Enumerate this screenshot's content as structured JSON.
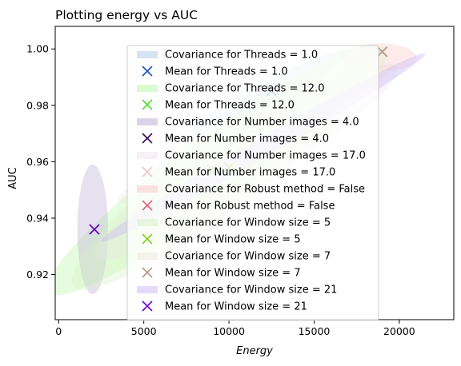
{
  "chart_data": {
    "type": "scatter",
    "title": "Plotting energy vs AUC",
    "xlabel": "Energy",
    "ylabel": "AUC",
    "xlim": [
      -200,
      23200
    ],
    "ylim": [
      0.904,
      1.008
    ],
    "xticks": [
      0,
      5000,
      10000,
      15000,
      20000
    ],
    "xtick_labels": [
      "0",
      "5000",
      "10000",
      "15000",
      "20000"
    ],
    "yticks": [
      0.92,
      0.94,
      0.96,
      0.98,
      1.0
    ],
    "ytick_labels": [
      "0.92",
      "0.94",
      "0.96",
      "0.98",
      "1.00"
    ],
    "grid": false,
    "legend_position": "upper center",
    "series": [
      {
        "name": "Covariance for Threads = 1.0",
        "kind": "covariance",
        "color": "#aec7e8",
        "center": [
          12500,
          0.985
        ],
        "rx": 5200,
        "ry": 0.004,
        "angle_data_per_x": 3.1e-06,
        "alpha": 0.35
      },
      {
        "name": "Mean for Threads = 1.0",
        "kind": "mean",
        "color": "#1f4fbf",
        "x": 12500,
        "y": 0.985
      },
      {
        "name": "Covariance for Threads = 12.0",
        "kind": "covariance",
        "color": "#b6f5a2",
        "center": [
          9000,
          0.957
        ],
        "rx": 12000,
        "ry": 0.012,
        "angle_data_per_x": 4.5e-06,
        "alpha": 0.35
      },
      {
        "name": "Mean for Threads = 12.0",
        "kind": "mean",
        "color": "#4de02b",
        "x": 9000,
        "y": 0.957
      },
      {
        "name": "Covariance for Number images = 4.0",
        "kind": "covariance",
        "color": "#b7a8d0",
        "center": [
          2000,
          0.936
        ],
        "rx": 900,
        "ry": 0.023,
        "angle_data_per_x": 0.0,
        "alpha": 0.35
      },
      {
        "name": "Mean for Number images = 4.0",
        "kind": "mean",
        "color": "#3b0a57",
        "x": 2100,
        "y": 0.936
      },
      {
        "name": "Covariance for Number images = 17.0",
        "kind": "covariance",
        "color": "#f0e2ea",
        "center": [
          11000,
          0.96
        ],
        "rx": 10500,
        "ry": 0.01,
        "angle_data_per_x": 3.8e-06,
        "alpha": 0.35
      },
      {
        "name": "Mean for Number images = 17.0",
        "kind": "mean",
        "color": "#e8c7cc",
        "x": 19000,
        "y": 0.999
      },
      {
        "name": "Covariance for Robust method = False",
        "kind": "covariance",
        "color": "#f8c5c8",
        "center": [
          18800,
          0.997
        ],
        "rx": 2200,
        "ry": 0.005,
        "angle_data_per_x": 0.0,
        "alpha": 0.35
      },
      {
        "name": "Mean for Robust method = False",
        "kind": "mean",
        "color": "#e06070",
        "x": 19000,
        "y": 0.999
      },
      {
        "name": "Covariance for Window size = 5",
        "kind": "covariance",
        "color": "#d8f0c2",
        "center": [
          10000,
          0.958
        ],
        "rx": 11500,
        "ry": 0.013,
        "angle_data_per_x": 4.6e-06,
        "alpha": 0.35
      },
      {
        "name": "Mean for Window size = 5",
        "kind": "mean",
        "color": "#7fd026",
        "x": 10000,
        "y": 0.958
      },
      {
        "name": "Covariance for Window size = 7",
        "kind": "covariance",
        "color": "#efe6de",
        "center": [
          11500,
          0.97
        ],
        "rx": 9000,
        "ry": 0.006,
        "angle_data_per_x": 3e-06,
        "alpha": 0.35
      },
      {
        "name": "Mean for Window size = 7",
        "kind": "mean",
        "color": "#b89a86",
        "x": 19000,
        "y": 0.999
      },
      {
        "name": "Covariance for Window size = 21",
        "kind": "covariance",
        "color": "#cbb6f6",
        "center": [
          12000,
          0.965
        ],
        "rx": 11000,
        "ry": 0.0035,
        "angle_data_per_x": 3.5e-06,
        "alpha": 0.4
      },
      {
        "name": "Mean for Window size = 21",
        "kind": "mean",
        "color": "#6a00d8",
        "x": 2100,
        "y": 0.936
      }
    ]
  }
}
